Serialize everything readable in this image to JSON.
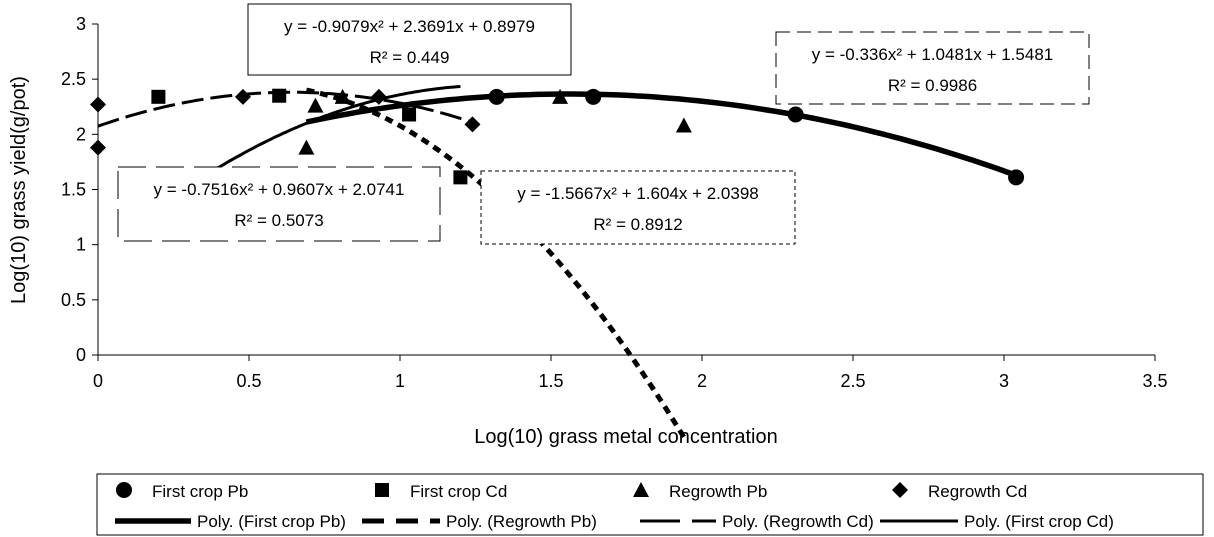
{
  "chart_data": {
    "type": "scatter",
    "xlabel": "Log(10) grass metal concentration",
    "ylabel": "Log(10) grass yield(g/pot)",
    "xlim": [
      0,
      3.5
    ],
    "ylim": [
      0,
      3
    ],
    "x_ticks": [
      "0",
      "0.5",
      "1",
      "1.5",
      "2",
      "2.5",
      "3",
      "3.5"
    ],
    "y_ticks": [
      "0",
      "0.5",
      "1",
      "1.5",
      "2",
      "2.5",
      "3"
    ],
    "grid": false,
    "legend_position": "bottom",
    "series": [
      {
        "name": "First crop Pb",
        "marker": "circle",
        "points": [
          [
            1.32,
            2.34
          ],
          [
            1.64,
            2.34
          ],
          [
            2.31,
            2.18
          ],
          [
            3.04,
            1.61
          ]
        ]
      },
      {
        "name": "First crop Cd",
        "marker": "square",
        "points": [
          [
            0.2,
            2.34
          ],
          [
            0.6,
            2.35
          ],
          [
            1.03,
            2.18
          ],
          [
            1.2,
            1.61
          ]
        ]
      },
      {
        "name": "Regrowth Pb",
        "marker": "triangle",
        "points": [
          [
            0.69,
            1.88
          ],
          [
            0.72,
            2.26
          ],
          [
            0.81,
            2.34
          ],
          [
            1.53,
            2.34
          ],
          [
            1.94,
            2.08
          ]
        ]
      },
      {
        "name": "Regrowth Cd",
        "marker": "diamond",
        "points": [
          [
            0.0,
            1.88
          ],
          [
            0.0,
            2.27
          ],
          [
            0.48,
            2.34
          ],
          [
            0.93,
            2.34
          ],
          [
            1.24,
            2.09
          ]
        ]
      }
    ],
    "trendlines": [
      {
        "name": "Poly. (First crop Pb)",
        "style": "thick",
        "coefficients": [
          -0.336,
          1.0481,
          1.5481
        ],
        "range": [
          0.69,
          3.04
        ],
        "equation": "y = -0.336x² + 1.0481x + 1.5481",
        "r2": "R² = 0.9986",
        "box_style": "dash"
      },
      {
        "name": "Poly. (Regrowth Pb)",
        "style": "dashed-thick",
        "coefficients": [
          -1.5667,
          1.604,
          2.0398
        ],
        "range": [
          0.69,
          1.94
        ],
        "equation": "y = -1.5667x² + 1.604x + 2.0398",
        "r2": "R² = 0.8912",
        "box_style": "dot"
      },
      {
        "name": "Poly. (Regrowth Cd)",
        "style": "longdash",
        "coefficients": [
          -0.7516,
          0.9607,
          2.0741
        ],
        "range": [
          0.0,
          1.24
        ],
        "equation": "y = -0.7516x² + 0.9607x + 2.0741",
        "r2": "R² = 0.5073",
        "box_style": "longdash"
      },
      {
        "name": "Poly. (First crop Cd)",
        "style": "solid",
        "coefficients": [
          -0.9079,
          2.3691,
          0.8979
        ],
        "range": [
          0.2,
          1.2
        ],
        "equation": "y = -0.9079x² + 2.3691x + 0.8979",
        "r2": "R² = 0.449",
        "box_style": "solid"
      }
    ]
  }
}
